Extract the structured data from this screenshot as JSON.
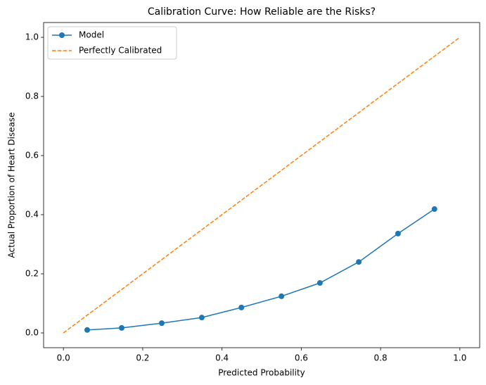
{
  "chart_data": {
    "type": "line",
    "title": "Calibration Curve: How Reliable are the Risks?",
    "xlabel": "Predicted Probability",
    "ylabel": "Actual Proportion of Heart Disease",
    "xlim": [
      -0.05,
      1.05
    ],
    "ylim": [
      -0.05,
      1.05
    ],
    "xticks": [
      {
        "value": 0,
        "label": "0.0"
      },
      {
        "value": 0.2,
        "label": "0.2"
      },
      {
        "value": 0.4,
        "label": "0.4"
      },
      {
        "value": 0.6,
        "label": "0.6"
      },
      {
        "value": 0.8,
        "label": "0.8"
      },
      {
        "value": 1,
        "label": "1.0"
      }
    ],
    "yticks": [
      {
        "value": 0,
        "label": "0.0"
      },
      {
        "value": 0.2,
        "label": "0.2"
      },
      {
        "value": 0.4,
        "label": "0.4"
      },
      {
        "value": 0.6,
        "label": "0.6"
      },
      {
        "value": 0.8,
        "label": "0.8"
      },
      {
        "value": 1,
        "label": "1.0"
      }
    ],
    "legend": "upper left",
    "series": [
      {
        "name": "Model",
        "color": "#1f77b4",
        "marker": "o",
        "linestyle": "solid",
        "x": [
          0.06,
          0.147,
          0.248,
          0.349,
          0.449,
          0.55,
          0.647,
          0.745,
          0.844,
          0.936
        ],
        "values": [
          0.01,
          0.017,
          0.033,
          0.052,
          0.086,
          0.124,
          0.169,
          0.24,
          0.336,
          0.419
        ]
      },
      {
        "name": "Perfectly Calibrated",
        "color": "#ff7f0e",
        "linestyle": "dashed",
        "x": [
          0,
          1
        ],
        "values": [
          0,
          1
        ]
      }
    ]
  }
}
